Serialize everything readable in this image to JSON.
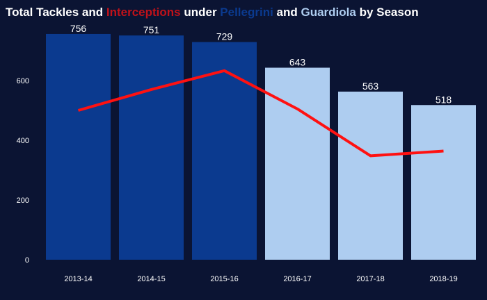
{
  "chart_data": {
    "type": "bar",
    "title_parts": [
      {
        "text": "Total Tackles and ",
        "role": "plain"
      },
      {
        "text": "Interceptions",
        "role": "line"
      },
      {
        "text": " under ",
        "role": "plain"
      },
      {
        "text": "Pellegrini",
        "role": "group1"
      },
      {
        "text": " and ",
        "role": "plain"
      },
      {
        "text": "Guardiola",
        "role": "group2"
      },
      {
        "text": " by Season",
        "role": "plain"
      }
    ],
    "categories": [
      "2013-14",
      "2014-15",
      "2015-16",
      "2016-17",
      "2017-18",
      "2018-19"
    ],
    "bars": {
      "values": [
        756,
        751,
        729,
        643,
        563,
        518
      ],
      "groups": [
        "Pellegrini",
        "Pellegrini",
        "Pellegrini",
        "Guardiola",
        "Guardiola",
        "Guardiola"
      ]
    },
    "line": {
      "values": [
        500,
        570,
        633,
        505,
        348,
        364
      ]
    },
    "y_ticks": [
      0,
      200,
      400,
      600
    ],
    "ylim": [
      0,
      800
    ],
    "grid": false,
    "colors": {
      "background": "#0b1433",
      "title": "#ffffff",
      "Pellegrini": "#0b3a8f",
      "Guardiola": "#aecdf0",
      "line": "#ff1111",
      "title_interceptions": "#c0121a",
      "title_pellegrini": "#0b3a8f",
      "title_guardiola": "#aecdf0",
      "text": "#ffffff"
    }
  }
}
